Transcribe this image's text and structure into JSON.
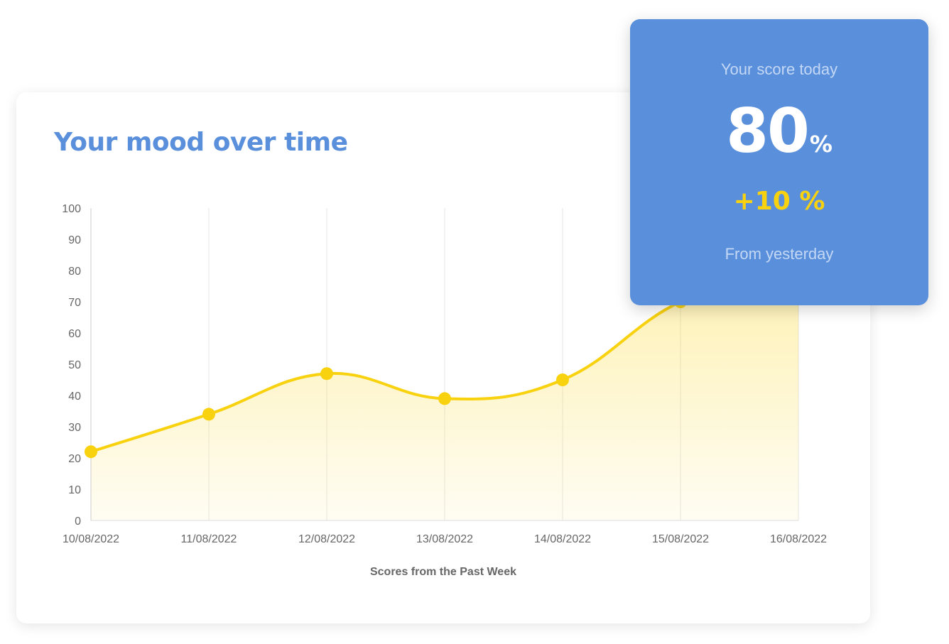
{
  "mood_card": {
    "title": "Your mood over time"
  },
  "score_panel": {
    "heading": "Your score today",
    "value": "80",
    "unit": "%",
    "change": "+10 %",
    "footer": "From yesterday"
  },
  "colors": {
    "accent_blue": "#5a8fdb",
    "line_yellow": "#f9d20f",
    "grid": "#e6e6e6",
    "tick_text": "#666666"
  },
  "chart_data": {
    "type": "area",
    "title": "Your mood over time",
    "xlabel": "Scores from the Past Week",
    "ylabel": "",
    "categories": [
      "10/08/2022",
      "11/08/2022",
      "12/08/2022",
      "13/08/2022",
      "14/08/2022",
      "15/08/2022",
      "16/08/2022"
    ],
    "y_ticks": [
      0,
      10,
      20,
      30,
      40,
      50,
      60,
      70,
      80,
      90,
      100
    ],
    "ylim": [
      0,
      100
    ],
    "series": [
      {
        "values": [
          22,
          34,
          47,
          39,
          45,
          70,
          80
        ]
      }
    ],
    "grid": "vertical",
    "legend": "none"
  }
}
